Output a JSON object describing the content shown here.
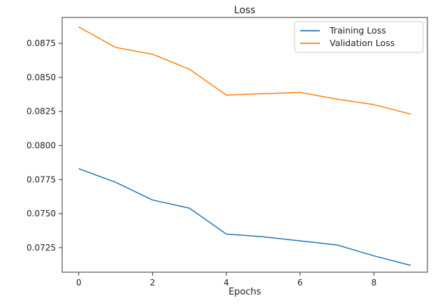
{
  "chart_data": {
    "type": "line",
    "title": "Loss",
    "xlabel": "Epochs",
    "ylabel": "",
    "x": [
      0,
      1,
      2,
      3,
      4,
      5,
      6,
      7,
      8,
      9
    ],
    "xlim": [
      -0.45,
      9.45
    ],
    "ylim": [
      0.0707,
      0.0894
    ],
    "xticks": [
      "0",
      "2",
      "4",
      "6",
      "8"
    ],
    "yticks": [
      "0.0725",
      "0.0750",
      "0.0775",
      "0.0800",
      "0.0825",
      "0.0850",
      "0.0875"
    ],
    "grid": false,
    "legend_position": "top-right",
    "series": [
      {
        "name": "Training Loss",
        "color": "#1f77b4",
        "values": [
          0.0783,
          0.0773,
          0.076,
          0.0754,
          0.0735,
          0.0733,
          0.073,
          0.0727,
          0.0719,
          0.0712
        ]
      },
      {
        "name": "Validation Loss",
        "color": "#ff7f0e",
        "values": [
          0.0887,
          0.0872,
          0.0867,
          0.0856,
          0.0837,
          0.0838,
          0.0839,
          0.0834,
          0.083,
          0.0823
        ]
      }
    ]
  }
}
